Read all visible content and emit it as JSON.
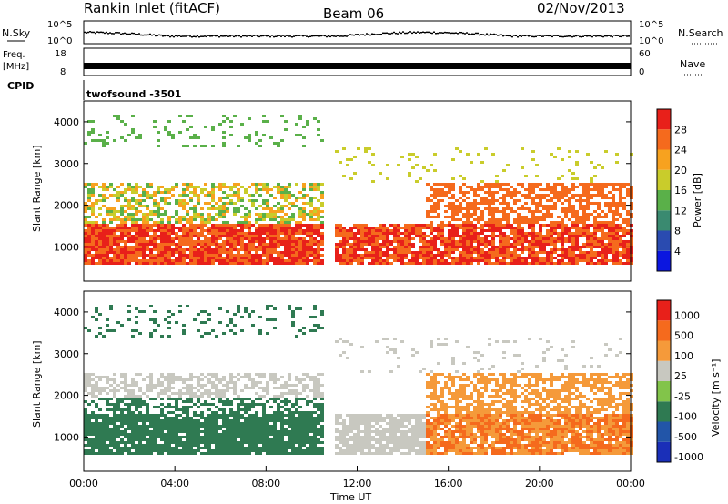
{
  "header": {
    "station": "Rankin Inlet (fitACF)",
    "beam": "Beam 06",
    "date": "02/Nov/2013"
  },
  "strip_panels": {
    "nsky": {
      "label": "N.Sky",
      "right_label": "N.Search",
      "left_ticks": [
        "10^5",
        "10^0"
      ],
      "right_ticks": [
        "10^5",
        "10^0"
      ]
    },
    "freq": {
      "label_top": "Freq.",
      "label_unit": "[MHz]",
      "left_ticks": [
        "18",
        "8"
      ],
      "right_label": "Nave",
      "right_ticks": [
        "60",
        "0"
      ]
    },
    "cpid": {
      "label": "CPID",
      "value": "twofsound -3501"
    }
  },
  "colors": {
    "power_scale": [
      "#0b16e0",
      "#2a4bb0",
      "#3a8a70",
      "#5ab049",
      "#c9cc2b",
      "#f7a21f",
      "#f56a1d",
      "#e8201a"
    ],
    "velocity_scale": [
      "#e8201a",
      "#f56a1d",
      "#f59a3a",
      "#c8c8c0",
      "#82c44a",
      "#2f7a52",
      "#2255a8",
      "#1a2fb8"
    ]
  },
  "chart_data": [
    {
      "type": "heatmap",
      "name": "Power",
      "ylabel": "Slant Range [km]",
      "ylim": [
        180,
        4500
      ],
      "yticks": [
        1000,
        2000,
        3000,
        4000
      ],
      "xlim_hours": [
        0,
        24
      ],
      "colorbar": {
        "label": "Power [dB]",
        "ticks": [
          "4",
          "8",
          "12",
          "16",
          "20",
          "24",
          "28"
        ]
      }
    },
    {
      "type": "heatmap",
      "name": "Velocity",
      "ylabel": "Slant Range [km]",
      "ylim": [
        180,
        4500
      ],
      "yticks": [
        1000,
        2000,
        3000,
        4000
      ],
      "xlim_hours": [
        0,
        24
      ],
      "xlabel": "Time UT",
      "xticks": [
        "00:00",
        "04:00",
        "08:00",
        "12:00",
        "16:00",
        "20:00",
        "00:00"
      ],
      "colorbar": {
        "label": "Velocity [m s⁻¹]",
        "ticks": [
          "1000",
          "500",
          "100",
          "25",
          "-25",
          "-100",
          "-500",
          "-1000"
        ]
      }
    }
  ]
}
